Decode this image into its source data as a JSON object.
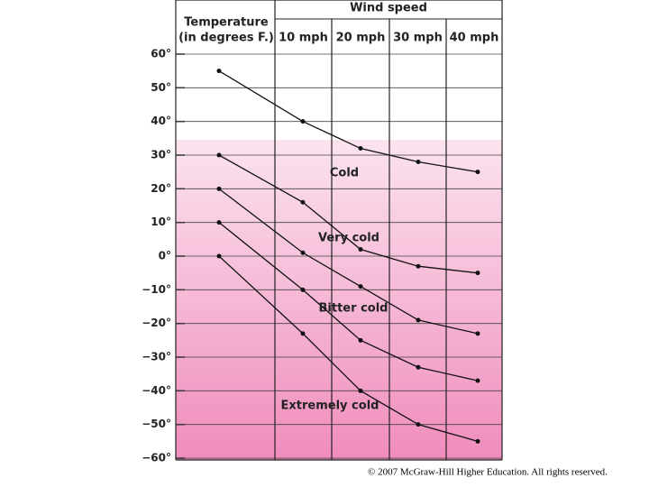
{
  "chart_data": {
    "type": "line",
    "x_label": "Wind speed",
    "row_header": [
      "Temperature",
      "(in degrees F.)"
    ],
    "categories": [
      null,
      "10 mph",
      "20 mph",
      "30 mph",
      "40 mph"
    ],
    "series": [
      {
        "color": "#111111",
        "values": [
          55,
          40,
          32,
          28,
          25
        ]
      },
      {
        "color": "#111111",
        "values": [
          30,
          16,
          2,
          -3,
          -5
        ]
      },
      {
        "color": "#111111",
        "values": [
          20,
          1,
          -9,
          -19,
          -23
        ]
      },
      {
        "color": "#111111",
        "values": [
          10,
          -10,
          -25,
          -33,
          -37
        ]
      },
      {
        "color": "#111111",
        "values": [
          0,
          -23,
          -40,
          -50,
          -55
        ]
      }
    ],
    "annotations": [
      "Cold",
      "Very cold",
      "Bitter cold",
      "Extremely cold"
    ],
    "ylim": [
      -60,
      60
    ],
    "yticks": [
      {
        "value": 60,
        "label": "60°"
      },
      {
        "value": 50,
        "label": "50°"
      },
      {
        "value": 40,
        "label": "40°"
      },
      {
        "value": 30,
        "label": "30°"
      },
      {
        "value": 20,
        "label": "20°"
      },
      {
        "value": 10,
        "label": "10°"
      },
      {
        "value": 0,
        "label": "0°"
      },
      {
        "value": -10,
        "label": "−10°"
      },
      {
        "value": -20,
        "label": "−20°"
      },
      {
        "value": -30,
        "label": "−30°"
      },
      {
        "value": -40,
        "label": "−40°"
      },
      {
        "value": -50,
        "label": "−50°"
      },
      {
        "value": -60,
        "label": "−60°"
      }
    ],
    "grid": true,
    "footer": "© 2007 McGraw-Hill Higher Education.  All rights reserved."
  }
}
